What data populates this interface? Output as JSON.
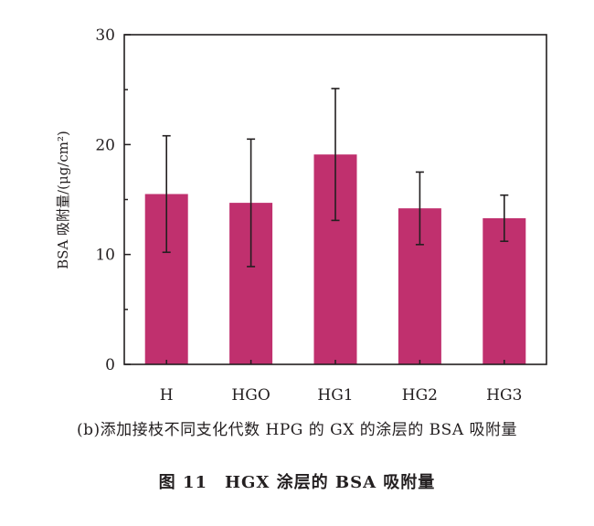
{
  "chart_data": {
    "type": "bar",
    "categories": [
      "H",
      "HGO",
      "HG1",
      "HG2",
      "HG3"
    ],
    "values": [
      15.5,
      14.7,
      19.1,
      14.2,
      13.3
    ],
    "error": [
      5.3,
      5.8,
      6.0,
      3.3,
      2.1
    ],
    "ylabel": "BSA 吸附量/(μg/cm²)",
    "ylim": [
      0,
      30
    ],
    "yticks": [
      0,
      10,
      20,
      30
    ],
    "bar_color": "#c0306e",
    "grid": false,
    "legend": "none"
  },
  "captions": {
    "sub": "(b)添加接枝不同支化代数 HPG 的 GX 的涂层的 BSA 吸附量",
    "figure": "图 11　HGX 涂层的 BSA 吸附量"
  }
}
